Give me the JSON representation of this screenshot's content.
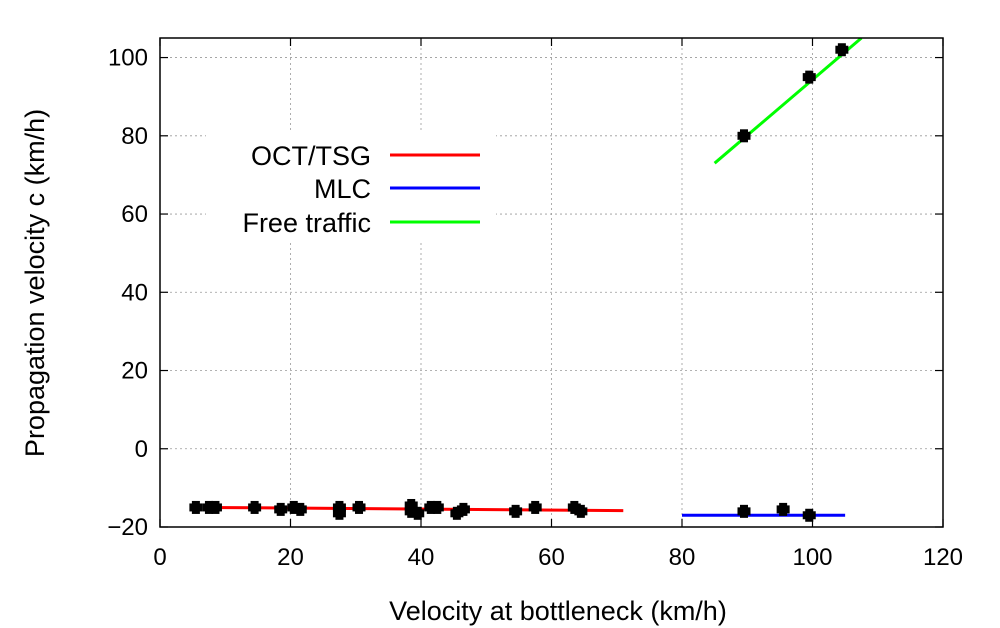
{
  "chart_data": {
    "type": "scatter",
    "xlabel": "Velocity at bottleneck (km/h)",
    "ylabel": "Propagation velocity c (km/h)",
    "xlim": [
      0,
      120
    ],
    "ylim": [
      -20,
      105
    ],
    "x_ticks": [
      0,
      20,
      40,
      60,
      80,
      100,
      120
    ],
    "y_ticks": [
      -20,
      0,
      20,
      40,
      60,
      80,
      100
    ],
    "x_tick_labels": [
      "0",
      "20",
      "40",
      "60",
      "80",
      "100",
      "120"
    ],
    "y_tick_labels": [
      "−20",
      "0",
      "20",
      "40",
      "60",
      "80",
      "100"
    ],
    "grid": true,
    "legend_position": "top-left",
    "points": [
      {
        "x": 5.5,
        "y": -15
      },
      {
        "x": 7.5,
        "y": -15
      },
      {
        "x": 8.5,
        "y": -15
      },
      {
        "x": 14.5,
        "y": -15
      },
      {
        "x": 18.5,
        "y": -15.5
      },
      {
        "x": 20.5,
        "y": -15
      },
      {
        "x": 21.5,
        "y": -15.5
      },
      {
        "x": 27.5,
        "y": -15
      },
      {
        "x": 27.5,
        "y": -16.5
      },
      {
        "x": 30.5,
        "y": -15
      },
      {
        "x": 38.5,
        "y": -14.5
      },
      {
        "x": 38.5,
        "y": -16
      },
      {
        "x": 39.5,
        "y": -16.5
      },
      {
        "x": 41.5,
        "y": -15
      },
      {
        "x": 42.5,
        "y": -15
      },
      {
        "x": 45.5,
        "y": -16.5
      },
      {
        "x": 46.5,
        "y": -15.5
      },
      {
        "x": 54.5,
        "y": -16
      },
      {
        "x": 57.5,
        "y": -15
      },
      {
        "x": 63.5,
        "y": -15
      },
      {
        "x": 64.5,
        "y": -16
      },
      {
        "x": 89.5,
        "y": -16
      },
      {
        "x": 95.5,
        "y": -15.5
      },
      {
        "x": 99.5,
        "y": -17
      },
      {
        "x": 89.5,
        "y": 80
      },
      {
        "x": 99.5,
        "y": 95
      },
      {
        "x": 104.5,
        "y": 102
      }
    ],
    "series": [
      {
        "name": "OCT/TSG",
        "color": "#ff0000",
        "x": [
          7,
          71
        ],
        "y": [
          -15,
          -15.8
        ]
      },
      {
        "name": "MLC",
        "color": "#0000ff",
        "x": [
          80,
          105
        ],
        "y": [
          -17,
          -17
        ]
      },
      {
        "name": "Free traffic",
        "color": "#00ff00",
        "x": [
          85,
          107.5
        ],
        "y": [
          73,
          105
        ]
      }
    ]
  }
}
